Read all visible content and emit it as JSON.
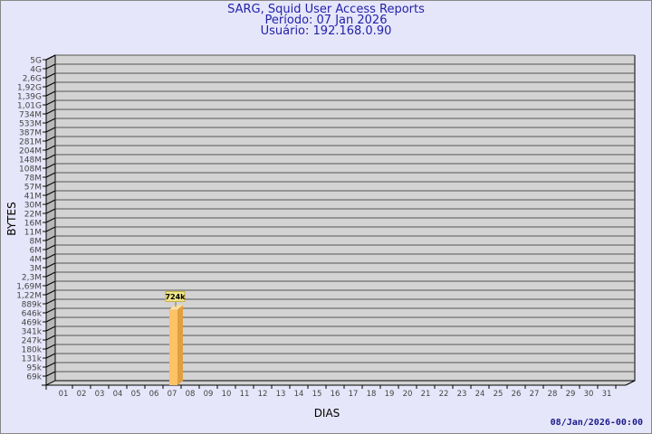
{
  "chart_data": {
    "type": "bar",
    "title": "SARG, Squid User Access Reports",
    "subtitle": [
      "Período: 07 Jan 2026",
      "Usuário: 192.168.0.90"
    ],
    "xlabel": "DIAS",
    "ylabel": "BYTES",
    "y_scale": "log",
    "y_ticks": [
      "5G",
      "4G",
      "2,6G",
      "1,92G",
      "1,39G",
      "1,01G",
      "734M",
      "533M",
      "387M",
      "281M",
      "204M",
      "148M",
      "108M",
      "78M",
      "57M",
      "41M",
      "30M",
      "22M",
      "16M",
      "11M",
      "8M",
      "6M",
      "4M",
      "3M",
      "2,3M",
      "1,69M",
      "1,22M",
      "889k",
      "646k",
      "469k",
      "341k",
      "247k",
      "180k",
      "131k",
      "95k",
      "69k"
    ],
    "y_tick_values": [
      5000000000,
      4000000000,
      2600000000,
      1920000000,
      1390000000,
      1010000000,
      734000000,
      533000000,
      387000000,
      281000000,
      204000000,
      148000000,
      108000000,
      78000000,
      57000000,
      41000000,
      30000000,
      22000000,
      16000000,
      11000000,
      8000000,
      6000000,
      4000000,
      3000000,
      2300000,
      1690000,
      1220000,
      889000,
      646000,
      469000,
      341000,
      247000,
      180000,
      131000,
      95000,
      69000
    ],
    "categories": [
      "01",
      "02",
      "03",
      "04",
      "05",
      "06",
      "07",
      "08",
      "09",
      "10",
      "11",
      "12",
      "13",
      "14",
      "15",
      "16",
      "17",
      "18",
      "19",
      "20",
      "21",
      "22",
      "23",
      "24",
      "25",
      "26",
      "27",
      "28",
      "29",
      "30",
      "31"
    ],
    "values": [
      null,
      null,
      null,
      null,
      null,
      null,
      724000,
      null,
      null,
      null,
      null,
      null,
      null,
      null,
      null,
      null,
      null,
      null,
      null,
      null,
      null,
      null,
      null,
      null,
      null,
      null,
      null,
      null,
      null,
      null,
      null
    ],
    "data_labels": {
      "07": "724k"
    },
    "grid": true,
    "colors": {
      "bar": "#ffc266",
      "bar_side": "#e0a040",
      "wall": "#d3d3d3",
      "label_bg": "#f0e68c",
      "title": "#2222aa"
    }
  },
  "footer": "08/Jan/2026-00:00"
}
